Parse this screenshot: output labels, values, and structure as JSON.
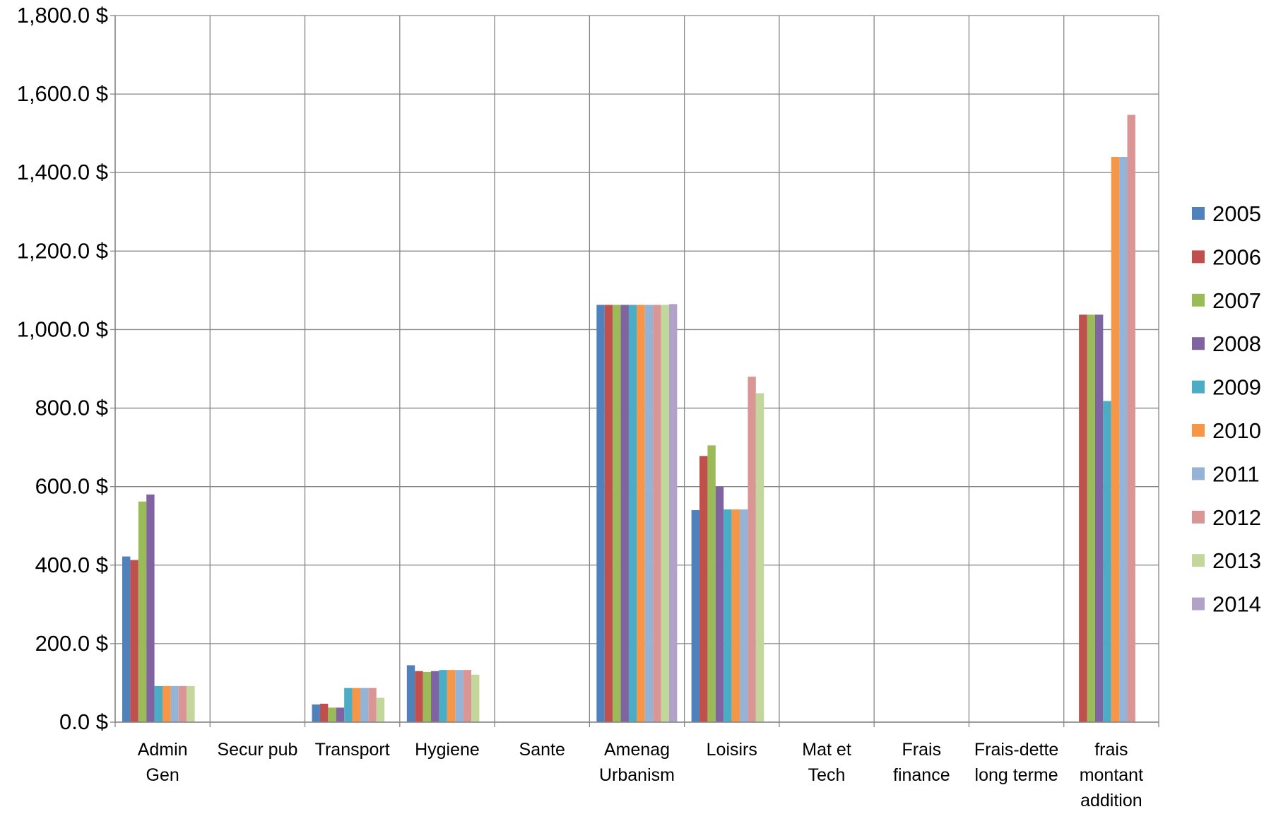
{
  "chart_data": {
    "type": "bar",
    "title": "",
    "xlabel": "",
    "ylabel": "",
    "ylim": [
      0,
      1800
    ],
    "y_tick_labels": [
      "0.0 $",
      "200.0 $",
      "400.0 $",
      "600.0 $",
      "800.0 $",
      "1,000.0 $",
      "1,200.0 $",
      "1,400.0 $",
      "1,600.0 $",
      "1,800.0 $"
    ],
    "y_tick_values": [
      0,
      200,
      400,
      600,
      800,
      1000,
      1200,
      1400,
      1600,
      1800
    ],
    "grid": true,
    "legend_position": "right",
    "categories": [
      [
        "Admin",
        "Gen"
      ],
      [
        "Secur pub"
      ],
      [
        "Transport"
      ],
      [
        "Hygiene"
      ],
      [
        "Sante"
      ],
      [
        "Amenag",
        "Urbanism"
      ],
      [
        "Loisirs"
      ],
      [
        "Mat et",
        "Tech"
      ],
      [
        "Frais",
        "finance"
      ],
      [
        "Frais-dette",
        "long terme"
      ],
      [
        "frais",
        "montant",
        "addition"
      ]
    ],
    "series": [
      {
        "name": "2005",
        "color": "#4F81BD",
        "values": [
          422,
          0,
          45,
          145,
          0,
          1063,
          540,
          0,
          0,
          0,
          0
        ]
      },
      {
        "name": "2006",
        "color": "#C0504D",
        "values": [
          413,
          0,
          47,
          130,
          0,
          1063,
          678,
          0,
          0,
          0,
          1038
        ]
      },
      {
        "name": "2007",
        "color": "#9BBB59",
        "values": [
          562,
          0,
          37,
          128,
          0,
          1063,
          705,
          0,
          0,
          0,
          1038
        ]
      },
      {
        "name": "2008",
        "color": "#8064A2",
        "values": [
          580,
          0,
          37,
          130,
          0,
          1063,
          600,
          0,
          0,
          0,
          1038
        ]
      },
      {
        "name": "2009",
        "color": "#4BACC6",
        "values": [
          92,
          0,
          87,
          133,
          0,
          1063,
          542,
          0,
          0,
          0,
          818
        ]
      },
      {
        "name": "2010",
        "color": "#F79646",
        "values": [
          92,
          0,
          87,
          133,
          0,
          1063,
          542,
          0,
          0,
          0,
          1440
        ]
      },
      {
        "name": "2011",
        "color": "#95B3D7",
        "values": [
          92,
          0,
          87,
          133,
          0,
          1063,
          542,
          0,
          0,
          0,
          1440
        ]
      },
      {
        "name": "2012",
        "color": "#D99694",
        "values": [
          92,
          0,
          87,
          133,
          0,
          1063,
          880,
          0,
          0,
          0,
          1547
        ]
      },
      {
        "name": "2013",
        "color": "#C3D69B",
        "values": [
          92,
          0,
          62,
          121,
          0,
          1063,
          838,
          0,
          0,
          0,
          0
        ]
      },
      {
        "name": "2014",
        "color": "#B3A2C7",
        "values": [
          0,
          0,
          0,
          0,
          0,
          1065,
          0,
          0,
          0,
          0,
          0
        ]
      }
    ]
  }
}
